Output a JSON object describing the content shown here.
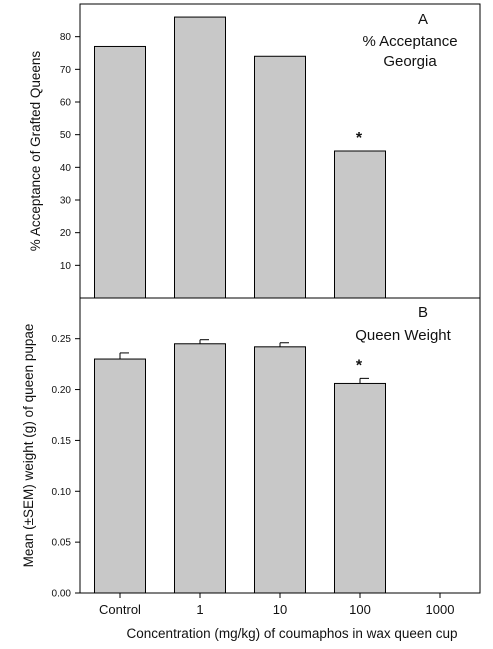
{
  "colors": {
    "bar_fill": "#c8c8c8",
    "bar_stroke": "#000000",
    "axis": "#000000",
    "background": "#ffffff"
  },
  "x_categories": [
    "Control",
    "1",
    "10",
    "100",
    "1000"
  ],
  "x_axis_label": "Concentration (mg/kg) of coumaphos in wax queen cup",
  "chart_data": [
    {
      "type": "bar",
      "panel": "A",
      "title": "% Acceptance\nGeorgia",
      "title_lines": [
        "% Acceptance",
        "Georgia"
      ],
      "ylabel": "% Acceptance of Grafted Queens",
      "xlabel": "",
      "ylim": [
        0,
        90
      ],
      "yticks": [
        10,
        20,
        30,
        40,
        50,
        60,
        70,
        80
      ],
      "categories": [
        "Control",
        "1",
        "10",
        "100",
        "1000"
      ],
      "values": [
        77,
        86,
        74,
        45,
        null
      ],
      "significance": [
        false,
        false,
        false,
        true,
        false
      ],
      "grid": false
    },
    {
      "type": "bar",
      "panel": "B",
      "title": "Queen Weight",
      "ylabel": "Mean (±SEM) weight (g) of queen pupae",
      "xlabel": "Concentration (mg/kg) of coumaphos in wax queen cup",
      "ylim": [
        0,
        0.29
      ],
      "yticks": [
        "0.00",
        "0.05",
        "0.10",
        "0.15",
        "0.20",
        "0.25"
      ],
      "categories": [
        "Control",
        "1",
        "10",
        "100",
        "1000"
      ],
      "values": [
        0.23,
        0.245,
        0.242,
        0.206,
        null
      ],
      "errors": [
        0.006,
        0.004,
        0.004,
        0.005,
        null
      ],
      "significance": [
        false,
        false,
        false,
        true,
        false
      ],
      "grid": false
    }
  ]
}
